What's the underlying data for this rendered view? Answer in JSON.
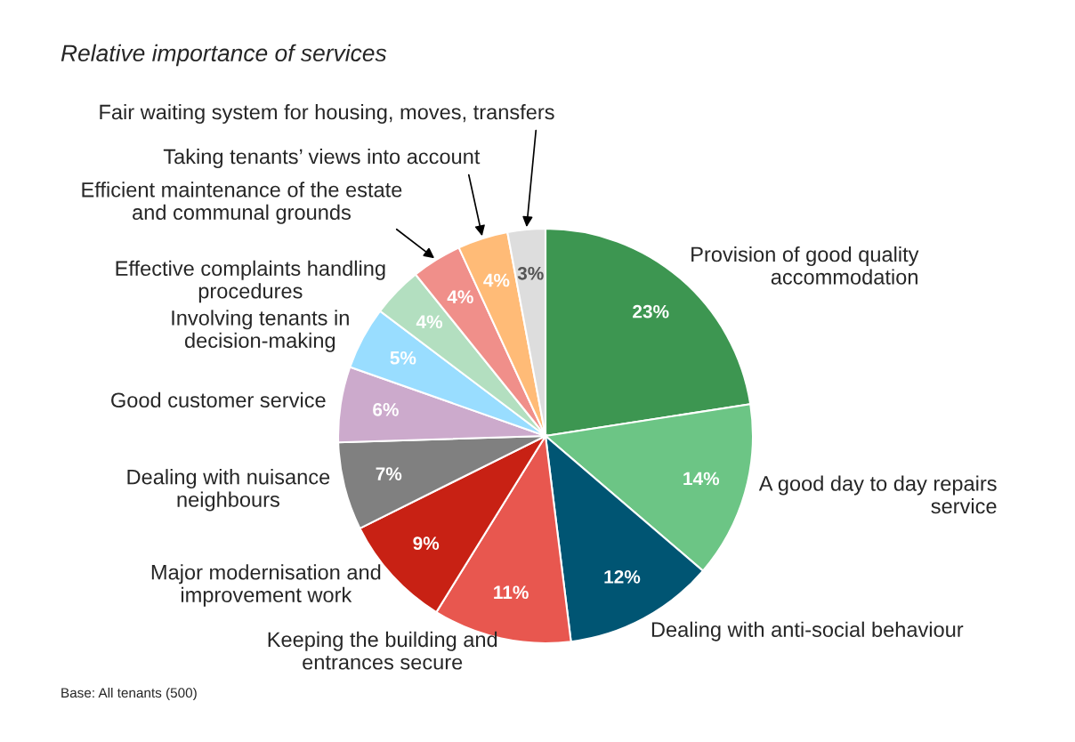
{
  "chart_data": {
    "type": "pie",
    "subtitle": "Relative importance of services",
    "categories": [
      "Provision of good quality\naccommodation",
      "A good day to day repairs\nservice",
      "Dealing with anti-social behaviour",
      "Keeping the building and\nentrances secure",
      "Major modernisation and\nimprovement work",
      "Dealing with nuisance\nneighbours",
      "Good customer service",
      "Involving tenants in\ndecision-making",
      "Effective complaints handling\nprocedures",
      "Efficient maintenance of the estate\nand communal grounds",
      "Taking tenants’ views into account",
      "Fair waiting system for housing, moves, transfers"
    ],
    "values": [
      23,
      14,
      12,
      11,
      9,
      7,
      6,
      5,
      4,
      4,
      4,
      3
    ],
    "value_labels": [
      "23%",
      "14%",
      "12%",
      "11%",
      "9%",
      "7%",
      "6%",
      "5%",
      "4%",
      "4%",
      "4%",
      "3%"
    ],
    "colors": [
      "#3d9651",
      "#6cc585",
      "#005573",
      "#e8574f",
      "#c82114",
      "#808080",
      "#ccaacc",
      "#99ddff",
      "#b3dfc0",
      "#f08f8a",
      "#ffbb77",
      "#dddddd"
    ],
    "annotations": [
      "Base: All tenants (500)"
    ],
    "legend": false
  }
}
